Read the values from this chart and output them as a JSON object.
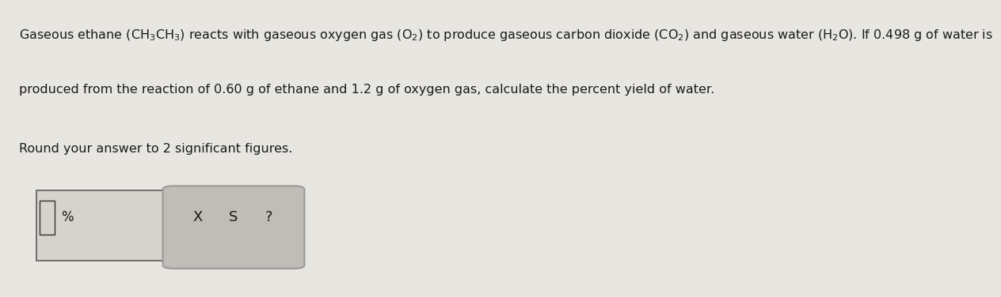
{
  "background_color": "#e8e6e0",
  "text_color": "#1a1a1a",
  "line1_plain": "Gaseous ethane ",
  "line1_formula1": "(CH₃CH₃)",
  "line1_mid": " reacts with gaseous oxygen gas ",
  "line1_formula2": "(O₂)",
  "line1_mid2": " to produce gaseous carbon dioxide ",
  "line1_formula3": "(CO₂)",
  "line1_mid3": " and gaseous water ",
  "line1_formula4": "(H₂O)",
  "line1_end": ". If 0.498 g of water is",
  "line2": "produced from the reaction of 0.60 g of ethane and 1.2 g of oxygen gas, calculate the percent yield of water.",
  "line3": "Round your answer to 2 significant figures.",
  "percent_label": "%",
  "button_x_symbol": "X",
  "button_s_symbol": "S",
  "button_q_symbol": "?",
  "font_size_main": 11.5,
  "font_size_sub": 11.5
}
